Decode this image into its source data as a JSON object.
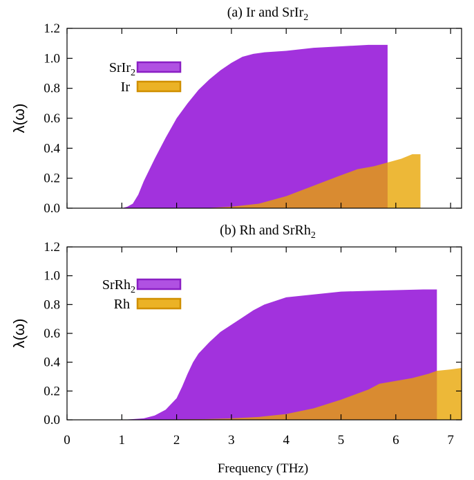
{
  "chart_data": [
    {
      "type": "area",
      "title": "(a) Ir and SrIr",
      "title_sub": "2",
      "ylabel": "λ(ω)",
      "xlabel": "",
      "xlim": [
        0,
        7.2
      ],
      "ylim": [
        0,
        1.2
      ],
      "xticks": [
        0,
        1,
        2,
        3,
        4,
        5,
        6,
        7
      ],
      "yticks": [
        "0.0",
        "0.2",
        "0.4",
        "0.6",
        "0.8",
        "1.0",
        "1.2"
      ],
      "grid": false,
      "legend": "top-left",
      "series": [
        {
          "name": "SrIr",
          "name_sub": "2",
          "color": "#a232dd",
          "edge": "#8a1fc4",
          "x": [
            0.0,
            1.0,
            1.1,
            1.2,
            1.3,
            1.4,
            1.6,
            1.8,
            2.0,
            2.2,
            2.4,
            2.6,
            2.8,
            3.0,
            3.2,
            3.4,
            3.6,
            4.0,
            4.5,
            5.0,
            5.5,
            5.85
          ],
          "y": [
            0.0,
            0.0,
            0.01,
            0.03,
            0.09,
            0.18,
            0.33,
            0.47,
            0.6,
            0.7,
            0.79,
            0.86,
            0.92,
            0.97,
            1.01,
            1.03,
            1.04,
            1.05,
            1.07,
            1.08,
            1.09,
            1.09
          ]
        },
        {
          "name": "Ir",
          "name_sub": "",
          "color": "#e8a400",
          "edge": "#d08f00",
          "x": [
            0.0,
            2.5,
            3.0,
            3.5,
            4.0,
            4.5,
            5.0,
            5.3,
            5.6,
            5.9,
            6.1,
            6.3,
            6.45
          ],
          "y": [
            0.0,
            0.0,
            0.01,
            0.03,
            0.08,
            0.15,
            0.22,
            0.26,
            0.28,
            0.31,
            0.33,
            0.36,
            0.36
          ]
        }
      ]
    },
    {
      "type": "area",
      "title": "(b) Rh and SrRh",
      "title_sub": "2",
      "ylabel": "λ(ω)",
      "xlabel": "Frequency (THz)",
      "xlim": [
        0,
        7.2
      ],
      "ylim": [
        0,
        1.2
      ],
      "xticks": [
        0,
        1,
        2,
        3,
        4,
        5,
        6,
        7
      ],
      "yticks": [
        "0.0",
        "0.2",
        "0.4",
        "0.6",
        "0.8",
        "1.0",
        "1.2"
      ],
      "grid": false,
      "legend": "top-left",
      "series": [
        {
          "name": "SrRh",
          "name_sub": "2",
          "color": "#a232dd",
          "edge": "#8a1fc4",
          "x": [
            0.0,
            1.0,
            1.2,
            1.4,
            1.6,
            1.8,
            2.0,
            2.1,
            2.2,
            2.3,
            2.4,
            2.6,
            2.8,
            3.0,
            3.2,
            3.4,
            3.6,
            4.0,
            4.5,
            5.0,
            5.5,
            6.0,
            6.5,
            6.75
          ],
          "y": [
            0.0,
            0.0,
            0.005,
            0.01,
            0.03,
            0.07,
            0.15,
            0.23,
            0.32,
            0.4,
            0.46,
            0.54,
            0.61,
            0.66,
            0.71,
            0.76,
            0.8,
            0.85,
            0.87,
            0.89,
            0.895,
            0.9,
            0.905,
            0.905
          ]
        },
        {
          "name": "Rh",
          "name_sub": "",
          "color": "#e8a400",
          "edge": "#d08f00",
          "x": [
            0.0,
            1.0,
            2.0,
            2.5,
            3.0,
            3.5,
            4.0,
            4.5,
            5.0,
            5.5,
            5.7,
            6.0,
            6.3,
            6.6,
            6.75,
            7.0,
            7.2
          ],
          "y": [
            0.0,
            0.0,
            0.003,
            0.005,
            0.01,
            0.02,
            0.04,
            0.08,
            0.14,
            0.21,
            0.25,
            0.27,
            0.29,
            0.32,
            0.34,
            0.35,
            0.36
          ]
        }
      ]
    }
  ]
}
